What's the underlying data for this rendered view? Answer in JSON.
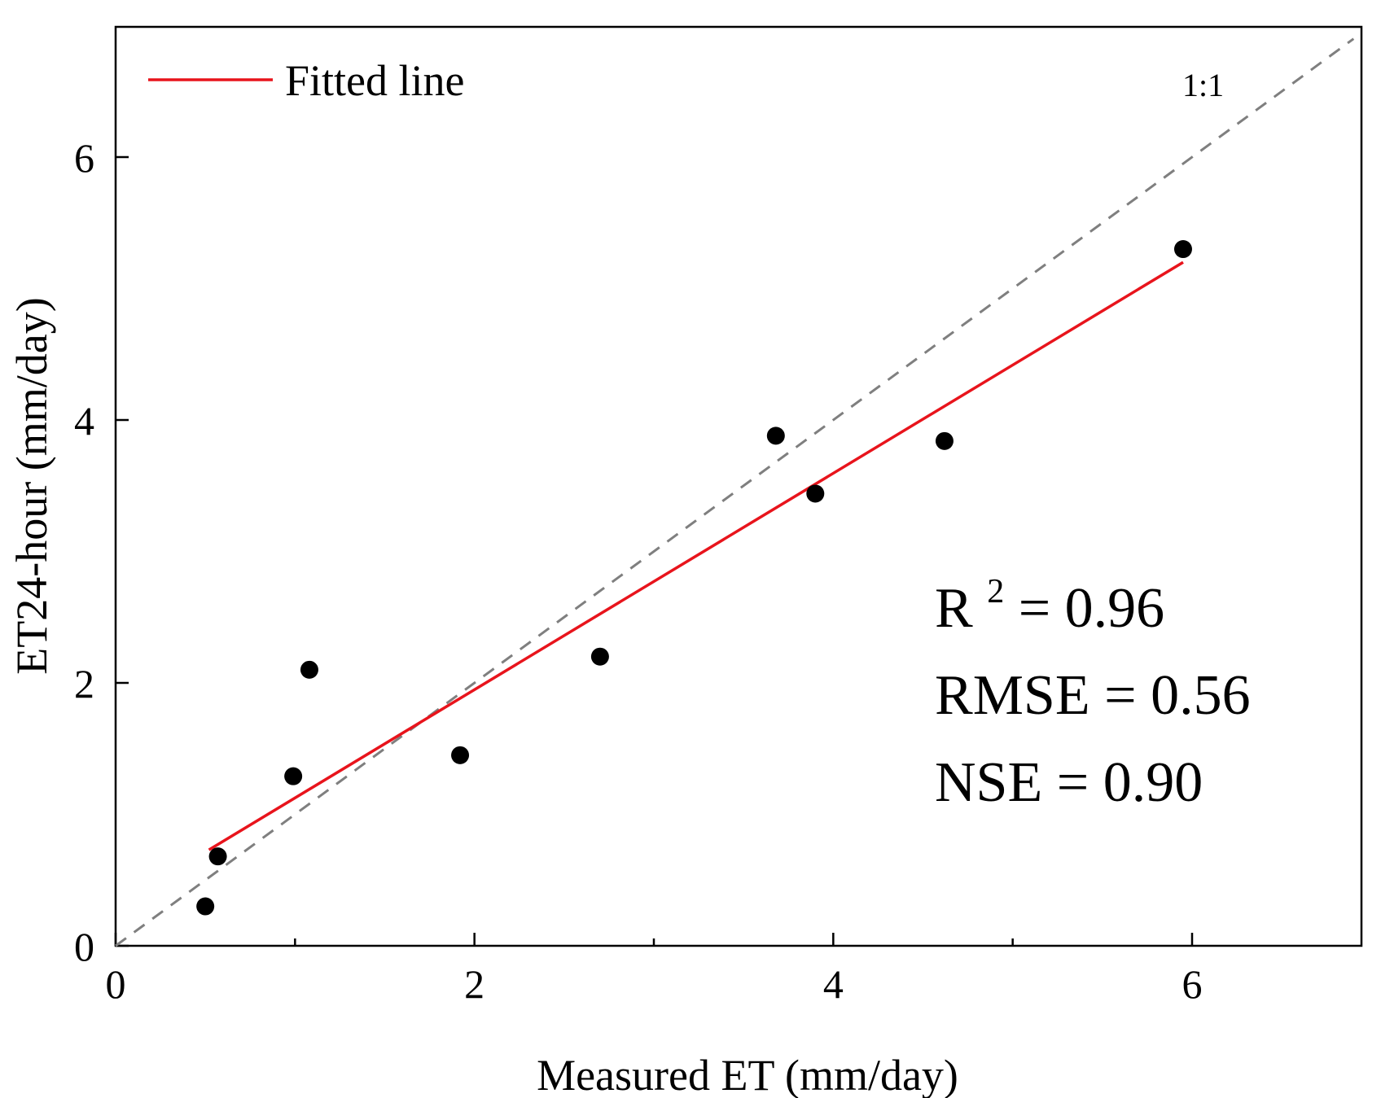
{
  "chart_data": {
    "type": "scatter",
    "xlabel": "Measured ET (mm/day)",
    "ylabel": "ET24-hour (mm/day)",
    "xlim": [
      0,
      7
    ],
    "ylim": [
      0,
      7
    ],
    "xticks": [
      0,
      2,
      4,
      6
    ],
    "yticks": [
      0,
      2,
      4,
      6
    ],
    "x_minor_ticks": [
      1,
      3,
      5
    ],
    "points": [
      {
        "x": 0.5,
        "y": 0.3
      },
      {
        "x": 0.57,
        "y": 0.68
      },
      {
        "x": 0.99,
        "y": 1.29
      },
      {
        "x": 1.08,
        "y": 2.1
      },
      {
        "x": 1.92,
        "y": 1.45
      },
      {
        "x": 2.7,
        "y": 2.2
      },
      {
        "x": 3.68,
        "y": 3.88
      },
      {
        "x": 3.9,
        "y": 3.44
      },
      {
        "x": 4.62,
        "y": 3.84
      },
      {
        "x": 5.95,
        "y": 5.3
      }
    ],
    "fitted_line": {
      "x": [
        0.52,
        5.95
      ],
      "y": [
        0.73,
        5.2
      ],
      "color": "#e8141c"
    },
    "reference_line": {
      "x": [
        0,
        7
      ],
      "y": [
        0,
        7
      ],
      "color": "#7f7f7f",
      "style": "dashed"
    },
    "legend": {
      "label": "Fitted line",
      "position": "top-left"
    },
    "reference_label": "1:1",
    "stats": {
      "r2_base": "R",
      "r2_exp": "2",
      "r2_value": " = 0.96",
      "rmse": "RMSE = 0.56",
      "nse": "NSE = 0.90"
    },
    "colors": {
      "points": "#000000",
      "axes": "#000000"
    }
  }
}
